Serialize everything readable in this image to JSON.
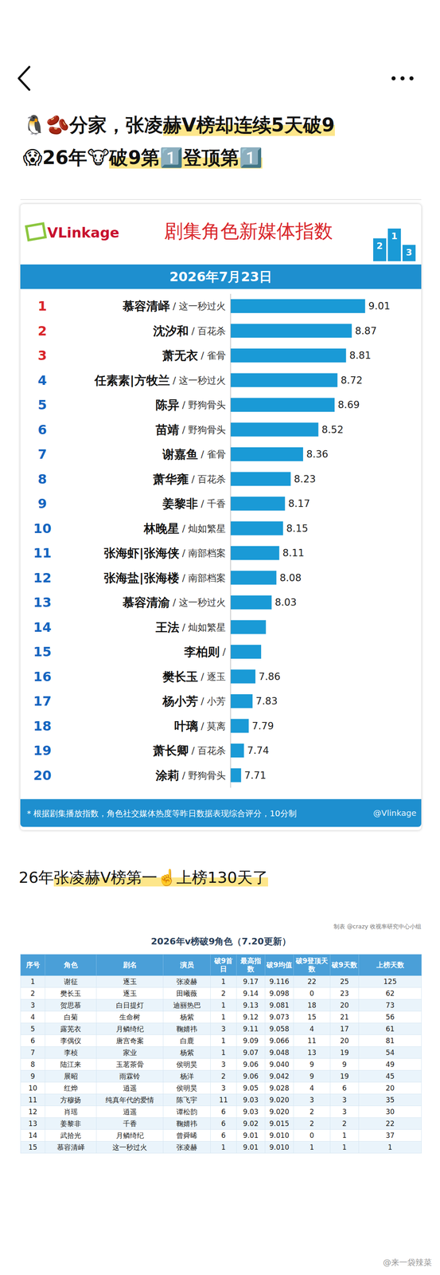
{
  "header": {
    "title_lines": [
      [
        {
          "text": "🐧🫘分家，张凌",
          "highlight": false
        },
        {
          "text": "赫V榜却连续5天破9",
          "highlight": true
        }
      ],
      [
        {
          "text": "😱26年🐮",
          "highlight": false
        },
        {
          "text": "破9第1️⃣登顶第1️⃣",
          "highlight": true
        }
      ]
    ]
  },
  "chart_data": {
    "type": "bar",
    "orientation": "horizontal",
    "logo": "VLinkage",
    "title": "剧集角色新媒体指数",
    "podium": [
      "2",
      "1",
      "3"
    ],
    "subtitle": "2026年7月23日",
    "ranks": [
      1,
      2,
      3,
      4,
      5,
      6,
      7,
      8,
      9,
      10,
      11,
      12,
      13,
      14,
      15,
      16,
      17,
      18,
      19,
      20
    ],
    "categories": [
      "慕容清峄",
      "沈汐和",
      "萧无衣",
      "任素素|方牧兰",
      "陈异",
      "苗靖",
      "谢嘉鱼",
      "萧华雍",
      "姜黎非",
      "林晚星",
      "张海虾|张海侠",
      "张海盐|张海楼",
      "慕容清渝",
      "王法",
      "李柏则",
      "樊长玉",
      "杨小芳",
      "叶璃",
      "萧长卿",
      "涂莉"
    ],
    "separator": " / ",
    "dramas": [
      "这一秒过火",
      "百花杀",
      "雀骨",
      "这一秒过火",
      "野狗骨头",
      "野狗骨头",
      "雀骨",
      "百花杀",
      "千香",
      "灿如繁星",
      "南部档案",
      "南部档案",
      "这一秒过火",
      "灿如繁星",
      null,
      "逐玉",
      "小芳",
      "莫离",
      "百花杀",
      "野狗骨头"
    ],
    "values": [
      9.01,
      8.87,
      8.81,
      8.72,
      8.69,
      8.52,
      8.36,
      8.23,
      8.17,
      8.15,
      8.11,
      8.08,
      8.03,
      7.97,
      7.92,
      7.86,
      7.83,
      7.79,
      7.74,
      7.71
    ],
    "value_labels": [
      "9.01",
      "8.87",
      "8.81",
      "8.72",
      "8.69",
      "8.52",
      "8.36",
      "8.23",
      "8.17",
      "8.15",
      "8.11",
      "8.08",
      "8.03",
      null,
      null,
      "7.86",
      "7.83",
      "7.79",
      "7.74",
      "7.71"
    ],
    "color": "#1a9ad6",
    "xlim": [
      7.6,
      9.5
    ],
    "xticks": [],
    "data_labels": true,
    "tick_labels": "y",
    "footnote": "* 根据剧集播放指数，角色社交媒体热度等昨日数据表现综合评分，10分制",
    "watermark": "@Vlinkage"
  },
  "caption": [
    {
      "text": "26年",
      "highlight": false
    },
    {
      "text": "张凌赫V榜第一☝️上榜130天了",
      "highlight": true
    }
  ],
  "table": {
    "title": "2026年v榜破9角色（7.20更新）",
    "credit": "制表 @crazy 收视率研究中心小组",
    "columns": [
      "序号",
      "角色",
      "剧名",
      "演员",
      "破9首日",
      "最高指数",
      "破9均值",
      "破9登顶天数",
      "破9天数",
      "上榜天数"
    ],
    "rows": [
      [
        "1",
        "谢征",
        "逐玉",
        "张凌赫",
        "1",
        "9.17",
        "9.116",
        "22",
        "25",
        "125"
      ],
      [
        "2",
        "樊长玉",
        "逐玉",
        "田曦薇",
        "2",
        "9.14",
        "9.098",
        "0",
        "23",
        "62"
      ],
      [
        "3",
        "贺思慕",
        "白日提灯",
        "迪丽热巴",
        "1",
        "9.13",
        "9.081",
        "18",
        "20",
        "73"
      ],
      [
        "4",
        "白菊",
        "生命树",
        "杨紫",
        "1",
        "9.12",
        "9.073",
        "15",
        "21",
        "56"
      ],
      [
        "5",
        "露芜衣",
        "月鳞绮纪",
        "鞠婧祎",
        "3",
        "9.11",
        "9.058",
        "4",
        "17",
        "61"
      ],
      [
        "6",
        "李偶仪",
        "唐宫奇案",
        "白鹿",
        "1",
        "9.09",
        "9.066",
        "11",
        "20",
        "81"
      ],
      [
        "7",
        "李桢",
        "家业",
        "杨紫",
        "1",
        "9.07",
        "9.048",
        "13",
        "19",
        "54"
      ],
      [
        "8",
        "陆江来",
        "玉茗茶骨",
        "侯明昊",
        "3",
        "9.06",
        "9.040",
        "9",
        "9",
        "49"
      ],
      [
        "9",
        "展昭",
        "雨霖铃",
        "杨洋",
        "2",
        "9.06",
        "9.042",
        "9",
        "19",
        "45"
      ],
      [
        "10",
        "红烨",
        "逍遥",
        "侯明昊",
        "3",
        "9.05",
        "9.028",
        "4",
        "6",
        "20"
      ],
      [
        "11",
        "方穆扬",
        "纯真年代的爱情",
        "陈飞宇",
        "11",
        "9.03",
        "9.020",
        "3",
        "3",
        "35"
      ],
      [
        "12",
        "肖瑶",
        "逍遥",
        "谭松韵",
        "6",
        "9.03",
        "9.020",
        "2",
        "3",
        "30"
      ],
      [
        "13",
        "姜黎非",
        "千香",
        "鞠婧祎",
        "6",
        "9.02",
        "9.015",
        "2",
        "2",
        "22"
      ],
      [
        "14",
        "武拾光",
        "月鳞绮纪",
        "曾舜晞",
        "6",
        "9.01",
        "9.010",
        "0",
        "1",
        "37"
      ],
      [
        "15",
        "慕容清峄",
        "这一秒过火",
        "张凌赫",
        "1",
        "9.01",
        "9.010",
        "1",
        "1",
        "1"
      ]
    ]
  },
  "footer": {
    "watermark": "@来一袋辣菜"
  }
}
